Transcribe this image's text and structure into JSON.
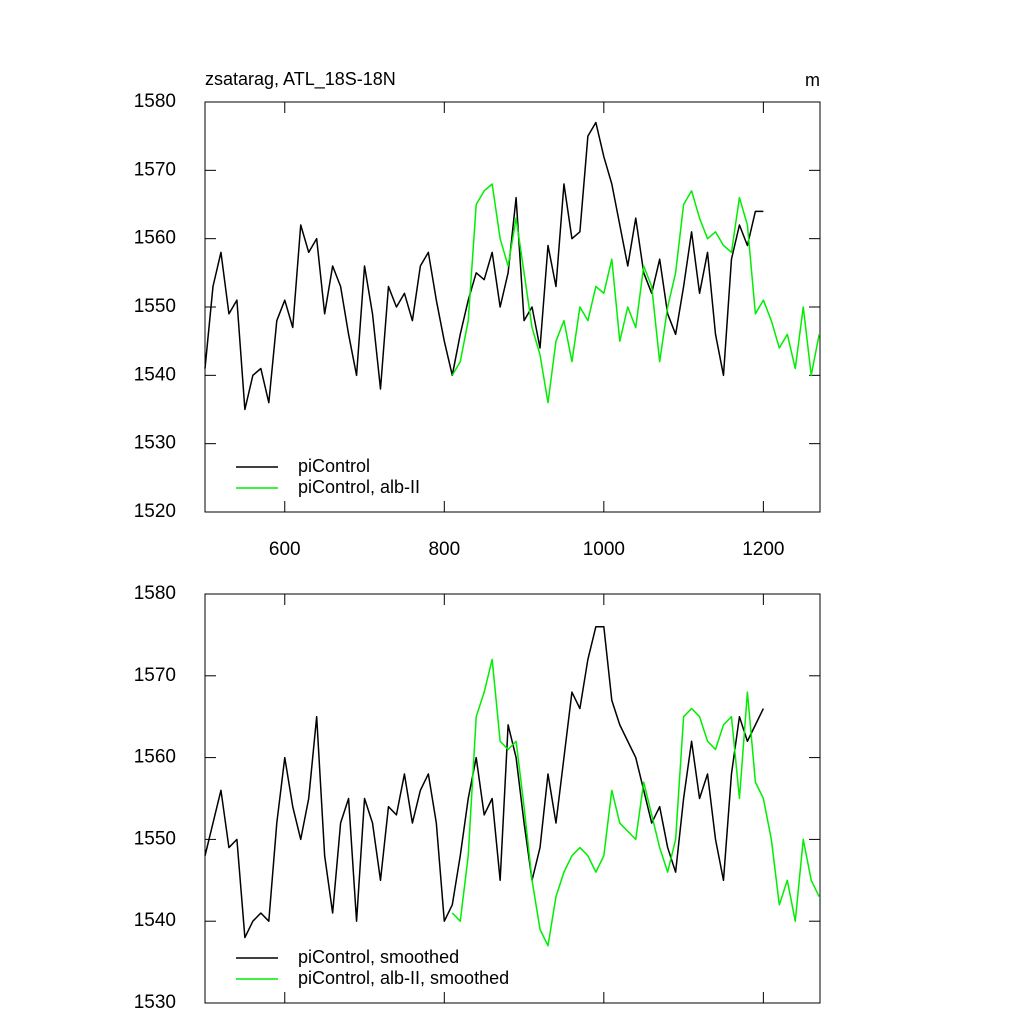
{
  "chart_data": [
    {
      "type": "line",
      "title": "zsatarag, ATL_18S-18N",
      "units": "m",
      "xlim": [
        500,
        1271
      ],
      "xticks": [
        600,
        800,
        1000,
        1200
      ],
      "xtick_labels": true,
      "ylim": [
        1520,
        1580
      ],
      "yticks": [
        1520,
        1530,
        1540,
        1550,
        1560,
        1570,
        1580
      ],
      "series": [
        {
          "name": "piControl",
          "color": "#000000",
          "x": [
            500,
            510,
            520,
            530,
            540,
            550,
            560,
            570,
            580,
            590,
            600,
            610,
            620,
            630,
            640,
            650,
            660,
            670,
            680,
            690,
            700,
            710,
            720,
            730,
            740,
            750,
            760,
            770,
            780,
            790,
            800,
            810,
            820,
            830,
            840,
            850,
            860,
            870,
            880,
            890,
            900,
            910,
            920,
            930,
            940,
            950,
            960,
            970,
            980,
            990,
            1000,
            1010,
            1020,
            1030,
            1040,
            1050,
            1060,
            1070,
            1080,
            1090,
            1100,
            1110,
            1120,
            1130,
            1140,
            1150,
            1160,
            1170,
            1180,
            1190,
            1200
          ],
          "values": [
            1541,
            1553,
            1558,
            1549,
            1551,
            1535,
            1540,
            1541,
            1536,
            1548,
            1551,
            1547,
            1562,
            1558,
            1560,
            1549,
            1556,
            1553,
            1546,
            1540,
            1556,
            1549,
            1538,
            1553,
            1550,
            1552,
            1548,
            1556,
            1558,
            1551,
            1545,
            1540,
            1546,
            1551,
            1555,
            1554,
            1558,
            1550,
            1555,
            1566,
            1548,
            1550,
            1544,
            1559,
            1553,
            1568,
            1560,
            1561,
            1575,
            1577,
            1572,
            1568,
            1562,
            1556,
            1563,
            1555,
            1552,
            1557,
            1549,
            1546,
            1553,
            1561,
            1552,
            1558,
            1546,
            1540,
            1557,
            1562,
            1559,
            1564,
            1564
          ]
        },
        {
          "name": "piControl, alb-II",
          "color": "#00ee00",
          "x": [
            810,
            820,
            830,
            840,
            850,
            860,
            870,
            880,
            890,
            900,
            910,
            920,
            930,
            940,
            950,
            960,
            970,
            980,
            990,
            1000,
            1010,
            1020,
            1030,
            1040,
            1050,
            1060,
            1070,
            1080,
            1090,
            1100,
            1110,
            1120,
            1130,
            1140,
            1150,
            1160,
            1170,
            1180,
            1190,
            1200,
            1210,
            1220,
            1230,
            1240,
            1250,
            1260,
            1270
          ],
          "values": [
            1540,
            1542,
            1548,
            1565,
            1567,
            1568,
            1560,
            1556,
            1563,
            1555,
            1547,
            1543,
            1536,
            1545,
            1548,
            1542,
            1550,
            1548,
            1553,
            1552,
            1557,
            1545,
            1550,
            1547,
            1556,
            1553,
            1542,
            1550,
            1555,
            1565,
            1567,
            1563,
            1560,
            1561,
            1559,
            1558,
            1566,
            1562,
            1549,
            1551,
            1548,
            1544,
            1546,
            1541,
            1550,
            1540,
            1546
          ]
        }
      ]
    },
    {
      "type": "line",
      "xlim": [
        500,
        1271
      ],
      "xticks": [
        600,
        800,
        1000,
        1200
      ],
      "xtick_labels": false,
      "ylim": [
        1530,
        1580
      ],
      "yticks": [
        1530,
        1540,
        1550,
        1560,
        1570,
        1580
      ],
      "series": [
        {
          "name": "piControl, smoothed",
          "color": "#000000",
          "x": [
            500,
            510,
            520,
            530,
            540,
            550,
            560,
            570,
            580,
            590,
            600,
            610,
            620,
            630,
            640,
            650,
            660,
            670,
            680,
            690,
            700,
            710,
            720,
            730,
            740,
            750,
            760,
            770,
            780,
            790,
            800,
            810,
            820,
            830,
            840,
            850,
            860,
            870,
            880,
            890,
            900,
            910,
            920,
            930,
            940,
            950,
            960,
            970,
            980,
            990,
            1000,
            1010,
            1020,
            1030,
            1040,
            1050,
            1060,
            1070,
            1080,
            1090,
            1100,
            1110,
            1120,
            1130,
            1140,
            1150,
            1160,
            1170,
            1180,
            1190,
            1200
          ],
          "values": [
            1548,
            1552,
            1556,
            1549,
            1550,
            1538,
            1540,
            1541,
            1540,
            1552,
            1560,
            1554,
            1550,
            1555,
            1565,
            1548,
            1541,
            1552,
            1555,
            1540,
            1555,
            1552,
            1545,
            1554,
            1553,
            1558,
            1552,
            1556,
            1558,
            1552,
            1540,
            1542,
            1548,
            1555,
            1560,
            1553,
            1555,
            1545,
            1564,
            1560,
            1552,
            1545,
            1549,
            1558,
            1552,
            1560,
            1568,
            1566,
            1572,
            1576,
            1576,
            1567,
            1564,
            1562,
            1560,
            1556,
            1552,
            1554,
            1549,
            1546,
            1555,
            1562,
            1555,
            1558,
            1550,
            1545,
            1558,
            1565,
            1562,
            1564,
            1566
          ]
        },
        {
          "name": "piControl, alb-II, smoothed",
          "color": "#00ee00",
          "x": [
            810,
            820,
            830,
            840,
            850,
            860,
            870,
            880,
            890,
            900,
            910,
            920,
            930,
            940,
            950,
            960,
            970,
            980,
            990,
            1000,
            1010,
            1020,
            1030,
            1040,
            1050,
            1060,
            1070,
            1080,
            1090,
            1100,
            1110,
            1120,
            1130,
            1140,
            1150,
            1160,
            1170,
            1180,
            1190,
            1200,
            1210,
            1220,
            1230,
            1240,
            1250,
            1260,
            1270
          ],
          "values": [
            1541,
            1540,
            1548,
            1565,
            1568,
            1572,
            1562,
            1561,
            1562,
            1554,
            1545,
            1539,
            1537,
            1543,
            1546,
            1548,
            1549,
            1548,
            1546,
            1548,
            1556,
            1552,
            1551,
            1550,
            1557,
            1553,
            1549,
            1546,
            1550,
            1565,
            1566,
            1565,
            1562,
            1561,
            1564,
            1565,
            1555,
            1568,
            1557,
            1555,
            1550,
            1542,
            1545,
            1540,
            1550,
            1545,
            1543
          ]
        }
      ]
    }
  ]
}
